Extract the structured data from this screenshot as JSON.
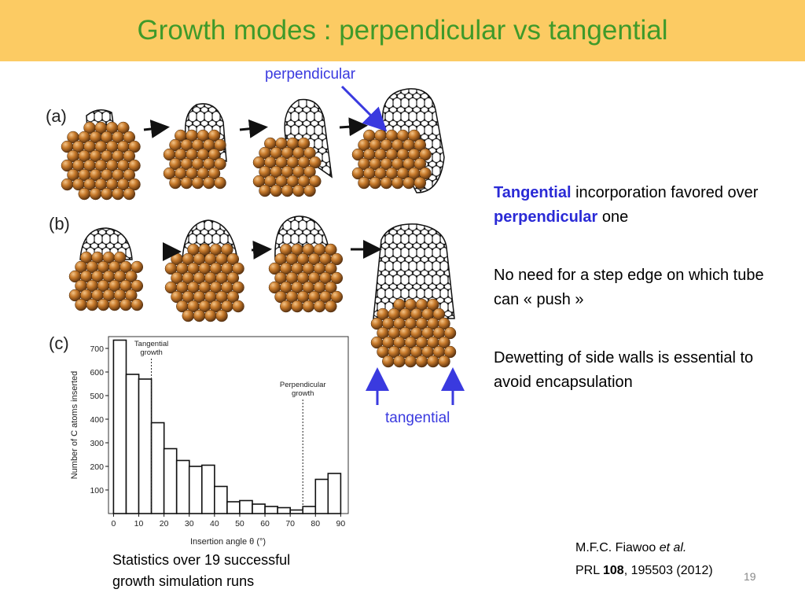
{
  "title": "Growth modes : perpendicular vs tangential",
  "labels": {
    "perpendicular": "perpendicular",
    "tangential": "tangential",
    "panel_a": "(a)",
    "panel_b": "(b)",
    "panel_c": "(c)"
  },
  "bullets": [
    {
      "hl1": "Tangential",
      "mid": " incorporation favored over ",
      "hl2": "perpendicular",
      "end": " one"
    },
    {
      "text": "No need for a step edge on which tube can « push »"
    },
    {
      "text": "Dewetting of side walls is essential to avoid encapsulation"
    }
  ],
  "caption": {
    "line1": "Statistics over 19 successful",
    "line2": "growth simulation runs"
  },
  "reference": {
    "line1_pre": "M.F.C. Fiawoo ",
    "line1_it": "et al.",
    "line2_pre": "PRL ",
    "line2_bold": "108",
    "line2_post": ", 195503 (2012)"
  },
  "page_number": "19",
  "colors": {
    "title_bar": "#fccb63",
    "title_text": "#3f9a2a",
    "highlight": "#2a2ad6",
    "atom": "#b5651d"
  },
  "chart_data": {
    "type": "bar",
    "xlabel": "Insertion angle θ (°)",
    "ylabel": "Number of C atoms inserted",
    "x_ticks": [
      0,
      10,
      20,
      30,
      40,
      50,
      60,
      70,
      80,
      90
    ],
    "y_ticks": [
      100,
      200,
      300,
      400,
      500,
      600,
      700
    ],
    "xlim": [
      -2,
      93
    ],
    "ylim": [
      0,
      750
    ],
    "bin_width": 5,
    "bin_centers": [
      2.5,
      7.5,
      12.5,
      17.5,
      22.5,
      27.5,
      32.5,
      37.5,
      42.5,
      47.5,
      52.5,
      57.5,
      62.5,
      67.5,
      72.5,
      77.5,
      82.5,
      87.5
    ],
    "values": [
      735,
      590,
      570,
      385,
      275,
      225,
      200,
      205,
      115,
      50,
      55,
      40,
      30,
      25,
      15,
      30,
      145,
      170
    ],
    "annotations": [
      {
        "text_lines": [
          "Tangential",
          "growth"
        ],
        "x": 15
      },
      {
        "text_lines": [
          "Perpendicular",
          "growth"
        ],
        "x": 75
      }
    ]
  }
}
